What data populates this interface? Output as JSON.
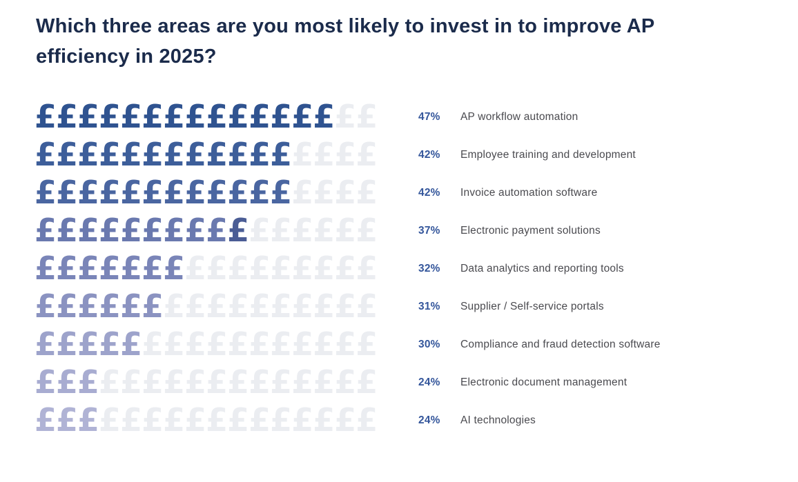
{
  "title": {
    "line1": "Which three areas are you most likely to invest in to improve AP",
    "line2": "efficiency in 2025?"
  },
  "chart_data": {
    "type": "bar",
    "subtype": "pictogram",
    "unit_symbol": "£",
    "unit_icon": "pound-sign-icon",
    "icons_per_row": 16,
    "empty_color": "#EBEDF1",
    "title": "Which three areas are you most likely to invest in to improve AP efficiency in 2025?",
    "categories": [
      "AP workflow automation",
      "Employee training and development",
      "Invoice automation software",
      "Electronic payment solutions",
      "Data analytics and reporting tools",
      "Supplier / Self-service portals",
      "Compliance and fraud detection software",
      "Electronic document management",
      "AI technologies"
    ],
    "values": [
      47,
      42,
      42,
      37,
      32,
      31,
      30,
      24,
      24
    ],
    "rows": [
      {
        "pct": "47%",
        "label": "AP workflow automation",
        "value": 47,
        "filled": 14,
        "color": "#2F5390"
      },
      {
        "pct": "42%",
        "label": "Employee training and development",
        "value": 42,
        "filled": 12,
        "color": "#3D5E9A"
      },
      {
        "pct": "42%",
        "label": "Invoice automation software",
        "value": 42,
        "filled": 12,
        "color": "#4A66A1"
      },
      {
        "pct": "37%",
        "label": "Electronic payment solutions",
        "value": 37,
        "filled": 10,
        "color": "#6A79AF",
        "last_color": "#4B5D95"
      },
      {
        "pct": "32%",
        "label": "Data analytics and reporting tools",
        "value": 32,
        "filled": 7,
        "color": "#7A85B8"
      },
      {
        "pct": "31%",
        "label": "Supplier / Self-service portals",
        "value": 31,
        "filled": 6,
        "color": "#8B93C1"
      },
      {
        "pct": "30%",
        "label": "Compliance and fraud detection software",
        "value": 30,
        "filled": 5,
        "color": "#9DA3CB"
      },
      {
        "pct": "24%",
        "label": "Electronic document management",
        "value": 24,
        "filled": 3,
        "color": "#A8ACD1"
      },
      {
        "pct": "24%",
        "label": "AI technologies",
        "value": 24,
        "filled": 3,
        "color": "#B0B3D5"
      }
    ],
    "legend_position": "right",
    "grid": false,
    "colors": {
      "title_text": "#1B2B4B",
      "percent_text": "#34569B",
      "label_text": "#4A4A4F",
      "empty_icon": "#EBEDF1"
    }
  }
}
